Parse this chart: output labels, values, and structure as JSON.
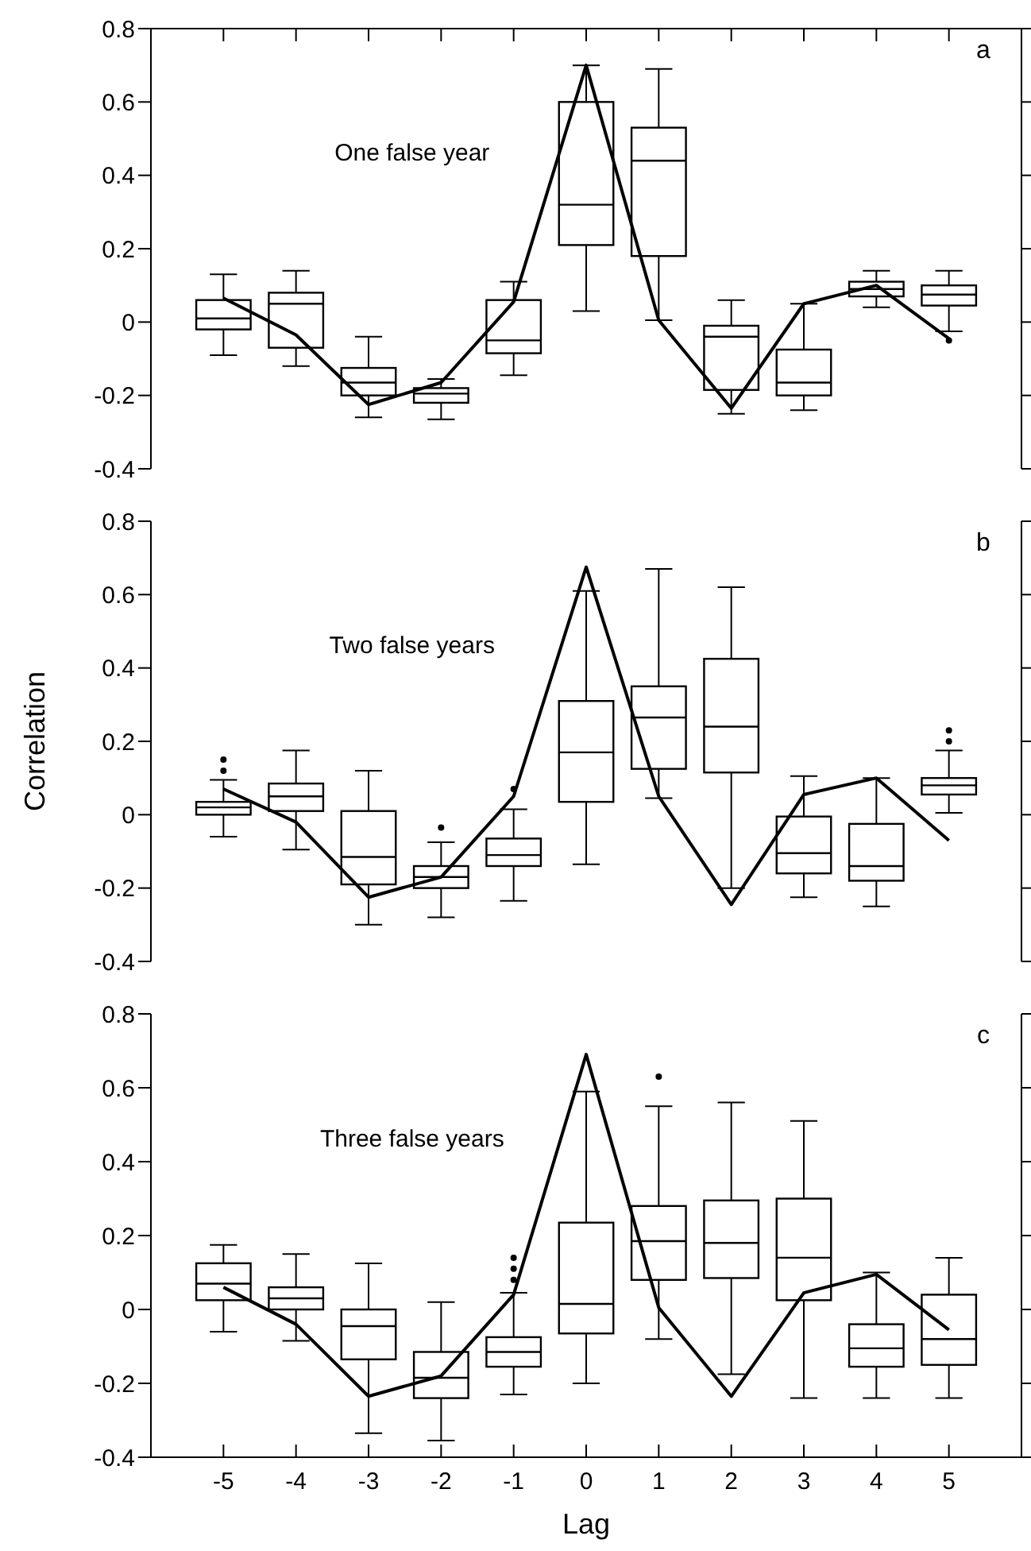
{
  "chart_data": [
    {
      "type": "box",
      "categories": [
        "-5",
        "-4",
        "-3",
        "-2",
        "-1",
        "0",
        "1",
        "2",
        "3",
        "4",
        "5"
      ],
      "ylim": [
        -0.4,
        0.8
      ],
      "yticks": [
        -0.4,
        -0.2,
        0,
        0.2,
        0.4,
        0.6,
        0.8
      ],
      "tick_labels": "y",
      "color": "#000000",
      "boxes": [
        {
          "low": -0.09,
          "q1": -0.02,
          "median": 0.01,
          "q3": 0.06,
          "high": 0.13
        },
        {
          "low": -0.12,
          "q1": -0.07,
          "median": 0.05,
          "q3": 0.08,
          "high": 0.14
        },
        {
          "low": -0.26,
          "q1": -0.2,
          "median": -0.165,
          "q3": -0.125,
          "high": -0.04
        },
        {
          "low": -0.265,
          "q1": -0.22,
          "median": -0.195,
          "q3": -0.18,
          "high": -0.155
        },
        {
          "low": -0.145,
          "q1": -0.085,
          "median": -0.05,
          "q3": 0.06,
          "high": 0.11
        },
        {
          "low": 0.03,
          "q1": 0.21,
          "median": 0.32,
          "q3": 0.6,
          "high": 0.7
        },
        {
          "low": 0.005,
          "q1": 0.18,
          "median": 0.44,
          "q3": 0.53,
          "high": 0.69
        },
        {
          "low": -0.25,
          "q1": -0.185,
          "median": -0.04,
          "q3": -0.01,
          "high": 0.06
        },
        {
          "low": -0.24,
          "q1": -0.2,
          "median": -0.165,
          "q3": -0.075,
          "high": 0.05
        },
        {
          "low": 0.04,
          "q1": 0.07,
          "median": 0.09,
          "q3": 0.11,
          "high": 0.14
        },
        {
          "low": -0.025,
          "q1": 0.045,
          "median": 0.075,
          "q3": 0.1,
          "high": 0.14,
          "outliers": [
            -0.05
          ]
        }
      ],
      "series": [
        {
          "type": "line",
          "color": "#000000",
          "values": [
            0.065,
            -0.035,
            -0.225,
            -0.165,
            0.055,
            0.7,
            0.005,
            -0.235,
            0.05,
            0.1,
            -0.045
          ]
        }
      ],
      "annotations": [
        "One false year",
        "a"
      ]
    },
    {
      "type": "box",
      "categories": [
        "-5",
        "-4",
        "-3",
        "-2",
        "-1",
        "0",
        "1",
        "2",
        "3",
        "4",
        "5"
      ],
      "ylim": [
        -0.4,
        0.8
      ],
      "yticks": [
        -0.4,
        -0.2,
        0,
        0.2,
        0.4,
        0.6,
        0.8
      ],
      "tick_labels": "y",
      "color": "#000000",
      "ylabel": "Correlation",
      "boxes": [
        {
          "low": -0.06,
          "q1": 0.0,
          "median": 0.02,
          "q3": 0.035,
          "high": 0.095,
          "outliers": [
            0.12,
            0.15
          ]
        },
        {
          "low": -0.095,
          "q1": 0.01,
          "median": 0.05,
          "q3": 0.085,
          "high": 0.175
        },
        {
          "low": -0.3,
          "q1": -0.19,
          "median": -0.115,
          "q3": 0.01,
          "high": 0.12
        },
        {
          "low": -0.28,
          "q1": -0.2,
          "median": -0.17,
          "q3": -0.14,
          "high": -0.075,
          "outliers": [
            -0.035
          ]
        },
        {
          "low": -0.235,
          "q1": -0.14,
          "median": -0.11,
          "q3": -0.065,
          "high": 0.015,
          "outliers": [
            0.07
          ]
        },
        {
          "low": -0.135,
          "q1": 0.035,
          "median": 0.17,
          "q3": 0.31,
          "high": 0.61
        },
        {
          "low": 0.045,
          "q1": 0.125,
          "median": 0.265,
          "q3": 0.35,
          "high": 0.67
        },
        {
          "low": -0.2,
          "q1": 0.115,
          "median": 0.24,
          "q3": 0.425,
          "high": 0.62
        },
        {
          "low": -0.225,
          "q1": -0.16,
          "median": -0.105,
          "q3": -0.005,
          "high": 0.105
        },
        {
          "low": -0.25,
          "q1": -0.18,
          "median": -0.14,
          "q3": -0.025,
          "high": 0.1
        },
        {
          "low": 0.005,
          "q1": 0.055,
          "median": 0.08,
          "q3": 0.1,
          "high": 0.175,
          "outliers": [
            0.2,
            0.23
          ]
        }
      ],
      "series": [
        {
          "type": "line",
          "color": "#000000",
          "values": [
            0.07,
            -0.02,
            -0.225,
            -0.17,
            0.05,
            0.675,
            0.05,
            -0.245,
            0.055,
            0.1,
            -0.07
          ]
        }
      ],
      "annotations": [
        "Two false years",
        "b"
      ]
    },
    {
      "type": "box",
      "categories": [
        "-5",
        "-4",
        "-3",
        "-2",
        "-1",
        "0",
        "1",
        "2",
        "3",
        "4",
        "5"
      ],
      "ylim": [
        -0.4,
        0.8
      ],
      "yticks": [
        -0.4,
        -0.2,
        0,
        0.2,
        0.4,
        0.6,
        0.8
      ],
      "color": "#000000",
      "xlabel": "Lag",
      "boxes": [
        {
          "low": -0.06,
          "q1": 0.025,
          "median": 0.07,
          "q3": 0.125,
          "high": 0.175
        },
        {
          "low": -0.085,
          "q1": 0.0,
          "median": 0.03,
          "q3": 0.06,
          "high": 0.15
        },
        {
          "low": -0.335,
          "q1": -0.135,
          "median": -0.045,
          "q3": 0.0,
          "high": 0.125
        },
        {
          "low": -0.355,
          "q1": -0.24,
          "median": -0.185,
          "q3": -0.115,
          "high": 0.02
        },
        {
          "low": -0.23,
          "q1": -0.155,
          "median": -0.115,
          "q3": -0.075,
          "high": 0.045,
          "outliers": [
            0.08,
            0.11,
            0.14
          ]
        },
        {
          "low": -0.2,
          "q1": -0.065,
          "median": 0.015,
          "q3": 0.235,
          "high": 0.59
        },
        {
          "low": -0.08,
          "q1": 0.08,
          "median": 0.185,
          "q3": 0.28,
          "high": 0.55,
          "outliers": [
            0.63
          ]
        },
        {
          "low": -0.175,
          "q1": 0.085,
          "median": 0.18,
          "q3": 0.295,
          "high": 0.56
        },
        {
          "low": -0.24,
          "q1": 0.025,
          "median": 0.14,
          "q3": 0.3,
          "high": 0.51
        },
        {
          "low": -0.24,
          "q1": -0.155,
          "median": -0.105,
          "q3": -0.04,
          "high": 0.1
        },
        {
          "low": -0.24,
          "q1": -0.15,
          "median": -0.08,
          "q3": 0.04,
          "high": 0.14
        }
      ],
      "series": [
        {
          "type": "line",
          "color": "#000000",
          "values": [
            0.06,
            -0.04,
            -0.235,
            -0.18,
            0.04,
            0.69,
            0.005,
            -0.235,
            0.045,
            0.095,
            -0.055
          ]
        }
      ],
      "annotations": [
        "Three false years",
        "c"
      ]
    }
  ]
}
